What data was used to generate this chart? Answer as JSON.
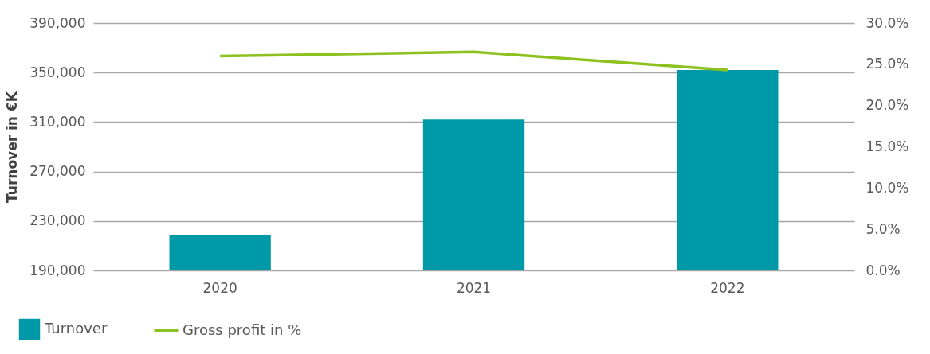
{
  "chart_data": {
    "type": "bar",
    "ylabel": "Turnover in €K",
    "categories": [
      "2020",
      "2021",
      "2022"
    ],
    "series": [
      {
        "name": "Turnover",
        "color": "#0099a8",
        "values": [
          219000,
          312000,
          352000
        ]
      },
      {
        "name": "Gross profit in %",
        "type": "line",
        "axis": "y2",
        "color": "#8cc11f",
        "values": [
          26.0,
          26.5,
          24.3
        ]
      }
    ],
    "ylim": [
      190000,
      390000
    ],
    "yticks": [
      {
        "value": 190000,
        "label": "190,000"
      },
      {
        "value": 230000,
        "label": "230,000"
      },
      {
        "value": 270000,
        "label": "270,000"
      },
      {
        "value": 310000,
        "label": "310,000"
      },
      {
        "value": 350000,
        "label": "350,000"
      },
      {
        "value": 390000,
        "label": "390,000"
      }
    ],
    "y2lim": [
      0,
      30
    ],
    "y2ticks": [
      {
        "value": 0,
        "label": "0.0%"
      },
      {
        "value": 5,
        "label": "5.0%"
      },
      {
        "value": 10,
        "label": "10.0%"
      },
      {
        "value": 15,
        "label": "15.0%"
      },
      {
        "value": 20,
        "label": "20.0%"
      },
      {
        "value": 25,
        "label": "25.0%"
      },
      {
        "value": 30,
        "label": "30.0%"
      }
    ],
    "grid": "y",
    "legend": "bottom left"
  }
}
